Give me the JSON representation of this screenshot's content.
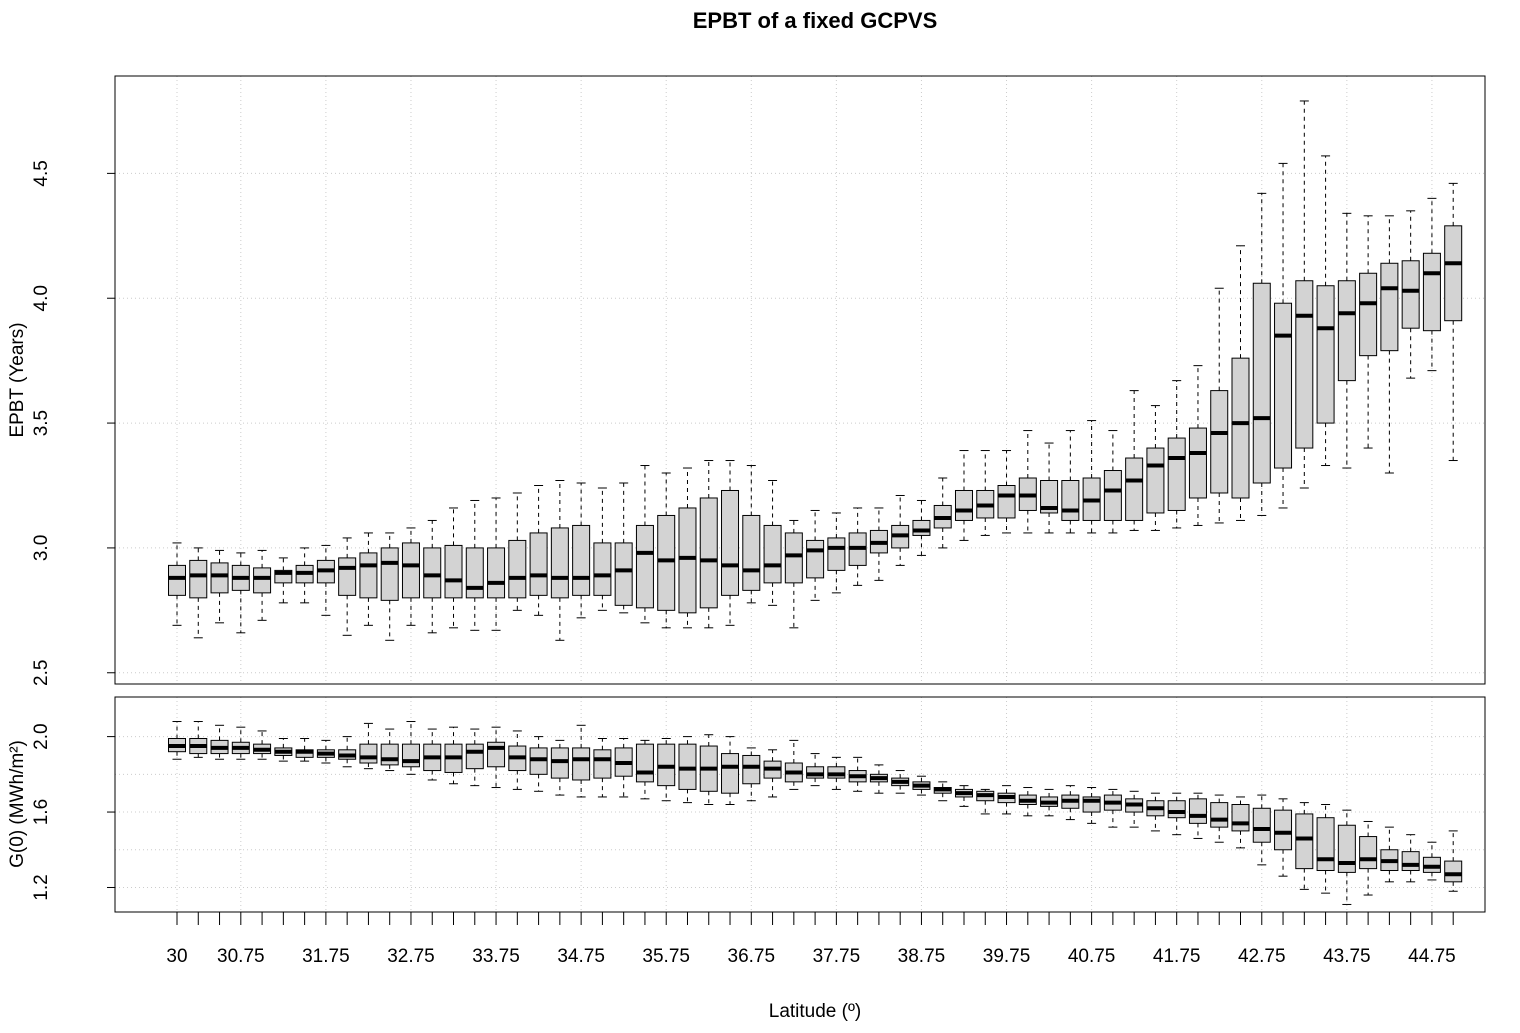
{
  "chart_data": [
    {
      "type": "boxplot",
      "title": "EPBT of a fixed GCPVS",
      "ylabel": "EPBT (Years)",
      "ylim": [
        2.455,
        4.89
      ],
      "yticks": [
        2.5,
        {
          "value": 3,
          "label": "3.0"
        },
        3.5,
        {
          "value": 4,
          "label": "4.0"
        },
        4.5
      ],
      "ygrid": [
        2.5,
        3,
        3.5,
        4,
        4.5
      ],
      "grid": true,
      "color": "#d3d3d3",
      "max": [
        3.02,
        3.0,
        2.99,
        2.98,
        2.99,
        2.96,
        3.0,
        3.01,
        3.04,
        3.06,
        3.06,
        3.08,
        3.11,
        3.16,
        3.19,
        3.2,
        3.22,
        3.25,
        3.27,
        3.26,
        3.24,
        3.26,
        3.33,
        3.3,
        3.32,
        3.35,
        3.35,
        3.33,
        3.27,
        3.11,
        3.15,
        3.14,
        3.16,
        3.16,
        3.21,
        3.19,
        3.28,
        3.39,
        3.39,
        3.39,
        3.47,
        3.42,
        3.47,
        3.51,
        3.47,
        3.63,
        3.57,
        3.67,
        3.73,
        4.04,
        4.21,
        4.42,
        4.54,
        4.79,
        4.57,
        4.34,
        4.33,
        4.33,
        4.35,
        4.4,
        4.46
      ],
      "q3": [
        2.93,
        2.95,
        2.94,
        2.93,
        2.92,
        2.91,
        2.93,
        2.95,
        2.96,
        2.98,
        3.0,
        3.02,
        3.0,
        3.01,
        3.0,
        3.0,
        3.03,
        3.06,
        3.08,
        3.09,
        3.02,
        3.02,
        3.09,
        3.13,
        3.16,
        3.2,
        3.23,
        3.13,
        3.09,
        3.06,
        3.03,
        3.04,
        3.06,
        3.07,
        3.09,
        3.11,
        3.17,
        3.23,
        3.23,
        3.25,
        3.28,
        3.27,
        3.27,
        3.28,
        3.31,
        3.36,
        3.4,
        3.44,
        3.48,
        3.63,
        3.76,
        4.06,
        3.98,
        4.07,
        4.05,
        4.07,
        4.1,
        4.14,
        4.15,
        4.18,
        4.29
      ],
      "median": [
        2.88,
        2.89,
        2.89,
        2.88,
        2.88,
        2.9,
        2.9,
        2.91,
        2.92,
        2.93,
        2.94,
        2.93,
        2.89,
        2.87,
        2.84,
        2.86,
        2.88,
        2.89,
        2.88,
        2.88,
        2.89,
        2.91,
        2.98,
        2.95,
        2.96,
        2.95,
        2.93,
        2.91,
        2.93,
        2.97,
        2.99,
        3.0,
        3.0,
        3.02,
        3.05,
        3.07,
        3.12,
        3.15,
        3.17,
        3.21,
        3.21,
        3.16,
        3.15,
        3.19,
        3.23,
        3.27,
        3.33,
        3.36,
        3.38,
        3.46,
        3.5,
        3.52,
        3.85,
        3.93,
        3.88,
        3.94,
        3.98,
        4.04,
        4.03,
        4.1,
        4.14
      ],
      "q1": [
        2.81,
        2.8,
        2.82,
        2.83,
        2.82,
        2.86,
        2.86,
        2.86,
        2.81,
        2.8,
        2.79,
        2.8,
        2.8,
        2.8,
        2.8,
        2.8,
        2.8,
        2.81,
        2.8,
        2.81,
        2.81,
        2.77,
        2.76,
        2.75,
        2.74,
        2.76,
        2.81,
        2.83,
        2.86,
        2.86,
        2.88,
        2.91,
        2.93,
        2.98,
        3.0,
        3.05,
        3.08,
        3.11,
        3.12,
        3.12,
        3.15,
        3.14,
        3.11,
        3.11,
        3.11,
        3.11,
        3.14,
        3.15,
        3.2,
        3.22,
        3.2,
        3.26,
        3.32,
        3.4,
        3.5,
        3.67,
        3.77,
        3.79,
        3.88,
        3.87,
        3.91
      ],
      "min": [
        2.69,
        2.64,
        2.7,
        2.66,
        2.71,
        2.78,
        2.78,
        2.73,
        2.65,
        2.69,
        2.63,
        2.69,
        2.66,
        2.68,
        2.67,
        2.67,
        2.75,
        2.73,
        2.63,
        2.72,
        2.75,
        2.74,
        2.7,
        2.68,
        2.68,
        2.68,
        2.69,
        2.78,
        2.77,
        2.68,
        2.79,
        2.82,
        2.85,
        2.87,
        2.93,
        2.97,
        3.0,
        3.03,
        3.05,
        3.06,
        3.06,
        3.06,
        3.06,
        3.06,
        3.06,
        3.07,
        3.07,
        3.08,
        3.09,
        3.1,
        3.11,
        3.13,
        3.16,
        3.24,
        3.33,
        3.32,
        3.4,
        3.3,
        3.68,
        3.71,
        3.35
      ]
    },
    {
      "type": "boxplot",
      "ylabel": "G(0) (MWh/m²)",
      "xlabel": "Latitude (º)",
      "categories": [
        "30",
        null,
        null,
        "30.75",
        null,
        null,
        null,
        "31.75",
        null,
        null,
        null,
        "32.75",
        null,
        null,
        null,
        "33.75",
        null,
        null,
        null,
        "34.75",
        null,
        null,
        null,
        "35.75",
        null,
        null,
        null,
        "36.75",
        null,
        null,
        null,
        "37.75",
        null,
        null,
        null,
        "38.75",
        null,
        null,
        null,
        "39.75",
        null,
        null,
        null,
        "40.75",
        null,
        null,
        null,
        "41.75",
        null,
        null,
        null,
        "42.75",
        null,
        null,
        null,
        "43.75",
        null,
        null,
        null,
        "44.75",
        null
      ],
      "ylim": [
        1.07,
        2.21
      ],
      "yticks": [
        1.2,
        1.6,
        {
          "value": 2,
          "label": "2.0"
        }
      ],
      "ygrid": [
        1.2,
        1.4,
        1.6,
        1.8,
        2
      ],
      "grid": true,
      "color": "#d3d3d3",
      "max": [
        2.08,
        2.08,
        2.06,
        2.05,
        2.03,
        1.99,
        1.99,
        1.98,
        2.0,
        2.07,
        2.04,
        2.08,
        2.04,
        2.05,
        2.04,
        2.05,
        2.03,
        2.0,
        1.98,
        2.06,
        1.99,
        1.99,
        1.98,
        1.99,
        2.0,
        2.01,
        2.0,
        1.94,
        1.93,
        1.98,
        1.91,
        1.89,
        1.89,
        1.85,
        1.82,
        1.79,
        1.76,
        1.74,
        1.72,
        1.74,
        1.73,
        1.72,
        1.74,
        1.73,
        1.72,
        1.71,
        1.7,
        1.7,
        1.7,
        1.69,
        1.68,
        1.69,
        1.67,
        1.65,
        1.64,
        1.61,
        1.55,
        1.52,
        1.48,
        1.44,
        1.5
      ],
      "q3": [
        1.99,
        1.99,
        1.98,
        1.97,
        1.96,
        1.94,
        1.93,
        1.93,
        1.93,
        1.96,
        1.96,
        1.96,
        1.96,
        1.96,
        1.96,
        1.97,
        1.95,
        1.94,
        1.94,
        1.94,
        1.93,
        1.94,
        1.96,
        1.96,
        1.96,
        1.95,
        1.91,
        1.9,
        1.87,
        1.86,
        1.84,
        1.84,
        1.82,
        1.8,
        1.78,
        1.76,
        1.73,
        1.72,
        1.71,
        1.7,
        1.69,
        1.68,
        1.69,
        1.68,
        1.69,
        1.67,
        1.66,
        1.66,
        1.67,
        1.65,
        1.64,
        1.62,
        1.61,
        1.59,
        1.57,
        1.53,
        1.47,
        1.4,
        1.39,
        1.36,
        1.34
      ],
      "median": [
        1.95,
        1.95,
        1.94,
        1.94,
        1.93,
        1.92,
        1.92,
        1.91,
        1.9,
        1.89,
        1.88,
        1.87,
        1.89,
        1.89,
        1.92,
        1.94,
        1.89,
        1.88,
        1.87,
        1.88,
        1.88,
        1.86,
        1.81,
        1.84,
        1.83,
        1.83,
        1.84,
        1.84,
        1.83,
        1.81,
        1.8,
        1.8,
        1.79,
        1.78,
        1.76,
        1.74,
        1.72,
        1.7,
        1.69,
        1.68,
        1.66,
        1.65,
        1.66,
        1.66,
        1.65,
        1.64,
        1.62,
        1.6,
        1.58,
        1.56,
        1.54,
        1.51,
        1.49,
        1.46,
        1.35,
        1.33,
        1.35,
        1.34,
        1.32,
        1.31,
        1.27
      ],
      "q1": [
        1.92,
        1.91,
        1.91,
        1.91,
        1.91,
        1.9,
        1.89,
        1.89,
        1.88,
        1.86,
        1.85,
        1.84,
        1.82,
        1.81,
        1.83,
        1.84,
        1.82,
        1.8,
        1.78,
        1.77,
        1.78,
        1.79,
        1.76,
        1.74,
        1.72,
        1.71,
        1.7,
        1.75,
        1.78,
        1.76,
        1.78,
        1.78,
        1.76,
        1.76,
        1.74,
        1.72,
        1.7,
        1.68,
        1.66,
        1.65,
        1.64,
        1.63,
        1.62,
        1.6,
        1.61,
        1.6,
        1.58,
        1.57,
        1.54,
        1.52,
        1.5,
        1.44,
        1.4,
        1.3,
        1.29,
        1.28,
        1.3,
        1.29,
        1.29,
        1.28,
        1.23
      ],
      "min": [
        1.88,
        1.89,
        1.88,
        1.88,
        1.88,
        1.87,
        1.87,
        1.86,
        1.84,
        1.83,
        1.82,
        1.8,
        1.77,
        1.75,
        1.74,
        1.73,
        1.72,
        1.71,
        1.69,
        1.68,
        1.68,
        1.68,
        1.67,
        1.66,
        1.65,
        1.64,
        1.64,
        1.66,
        1.68,
        1.72,
        1.74,
        1.72,
        1.71,
        1.7,
        1.7,
        1.69,
        1.66,
        1.63,
        1.59,
        1.59,
        1.58,
        1.58,
        1.56,
        1.54,
        1.52,
        1.52,
        1.5,
        1.48,
        1.46,
        1.44,
        1.41,
        1.32,
        1.26,
        1.19,
        1.17,
        1.11,
        1.16,
        1.23,
        1.23,
        1.24,
        1.18
      ]
    }
  ]
}
